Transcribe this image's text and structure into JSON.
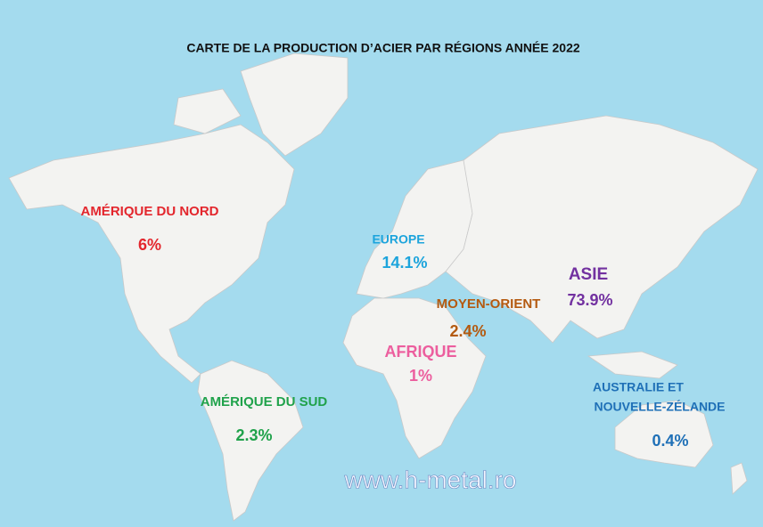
{
  "title": "CARTE DE LA PRODUCTION D’ACIER PAR RÉGIONS ANNÉE 2022",
  "regions": [
    {
      "name": [
        "AMÉRIQUE DU NORD"
      ],
      "value": "6%",
      "color": "#e3262d"
    },
    {
      "name": [
        "EUROPE"
      ],
      "value": "14.1%",
      "color": "#1ca4dc"
    },
    {
      "name": [
        "MOYEN-ORIENT"
      ],
      "value": "2.4%",
      "color": "#b45a10"
    },
    {
      "name": [
        "ASIE"
      ],
      "value": "73.9%",
      "color": "#7231a0"
    },
    {
      "name": [
        "AFRIQUE"
      ],
      "value": "1%",
      "color": "#ec5e9e"
    },
    {
      "name": [
        "AMÉRIQUE DU SUD"
      ],
      "value": "2.3%",
      "color": "#20a24b"
    },
    {
      "name": [
        "AUSTRALIE ET",
        "NOUVELLE-ZÉLANDE"
      ],
      "value": "0.4%",
      "color": "#1f70b7"
    }
  ],
  "website": "www.h-metal.ro"
}
